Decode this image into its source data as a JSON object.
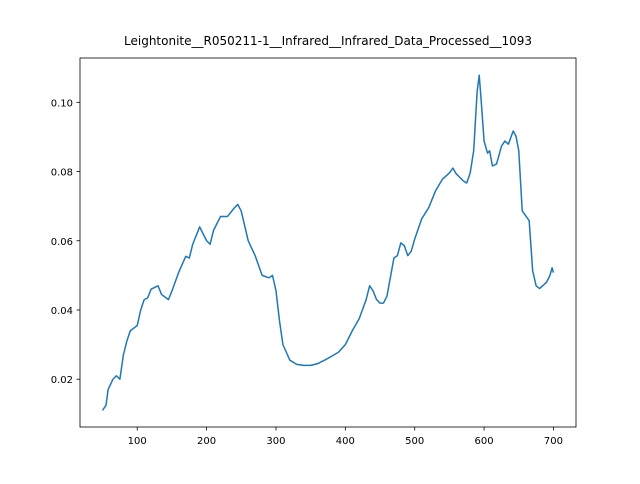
{
  "chart_data": {
    "type": "line",
    "title": "Leightonite__R050211-1__Infrared__Infrared_Data_Processed__1093",
    "x": [
      50,
      55,
      58,
      65,
      70,
      75,
      80,
      85,
      90,
      100,
      105,
      110,
      115,
      120,
      130,
      135,
      145,
      150,
      160,
      170,
      175,
      180,
      190,
      200,
      205,
      210,
      220,
      230,
      240,
      245,
      250,
      260,
      270,
      280,
      290,
      295,
      300,
      305,
      310,
      320,
      330,
      340,
      350,
      360,
      370,
      380,
      390,
      400,
      410,
      420,
      430,
      435,
      440,
      445,
      450,
      455,
      460,
      470,
      475,
      480,
      485,
      490,
      495,
      500,
      510,
      520,
      530,
      540,
      550,
      555,
      560,
      570,
      575,
      580,
      585,
      590,
      593,
      596,
      600,
      605,
      608,
      612,
      618,
      625,
      630,
      635,
      642,
      646,
      650,
      655,
      660,
      665,
      670,
      675,
      680,
      690,
      695,
      698,
      700
    ],
    "values": [
      0.011,
      0.0125,
      0.017,
      0.02,
      0.021,
      0.02,
      0.027,
      0.031,
      0.034,
      0.0355,
      0.04,
      0.043,
      0.0435,
      0.046,
      0.047,
      0.0445,
      0.043,
      0.0455,
      0.051,
      0.0555,
      0.055,
      0.059,
      0.064,
      0.06,
      0.059,
      0.063,
      0.067,
      0.067,
      0.0695,
      0.0705,
      0.0685,
      0.06,
      0.0557,
      0.05,
      0.0493,
      0.05,
      0.0456,
      0.037,
      0.03,
      0.0255,
      0.0243,
      0.024,
      0.024,
      0.0245,
      0.0255,
      0.0266,
      0.0278,
      0.03,
      0.034,
      0.0375,
      0.043,
      0.047,
      0.0455,
      0.043,
      0.042,
      0.042,
      0.044,
      0.055,
      0.0557,
      0.0594,
      0.0586,
      0.0557,
      0.057,
      0.0605,
      0.0663,
      0.0695,
      0.0744,
      0.0778,
      0.0796,
      0.081,
      0.0793,
      0.0773,
      0.0767,
      0.0796,
      0.086,
      0.1032,
      0.1078,
      0.1,
      0.0888,
      0.0853,
      0.086,
      0.0816,
      0.0822,
      0.0873,
      0.0888,
      0.0879,
      0.0917,
      0.0902,
      0.086,
      0.0686,
      0.0672,
      0.0658,
      0.0514,
      0.047,
      0.0462,
      0.048,
      0.05,
      0.0522,
      0.0508
    ],
    "color": "#1f77b4",
    "xlim": [
      17.5,
      732.5
    ],
    "xticks": [
      100,
      200,
      300,
      400,
      500,
      600,
      700
    ],
    "ylim": [
      0.0062,
      0.1128
    ],
    "yticks": [
      0.02,
      0.04,
      0.06,
      0.08,
      {
        "value": 0.1,
        "label": "0.10"
      }
    ]
  }
}
